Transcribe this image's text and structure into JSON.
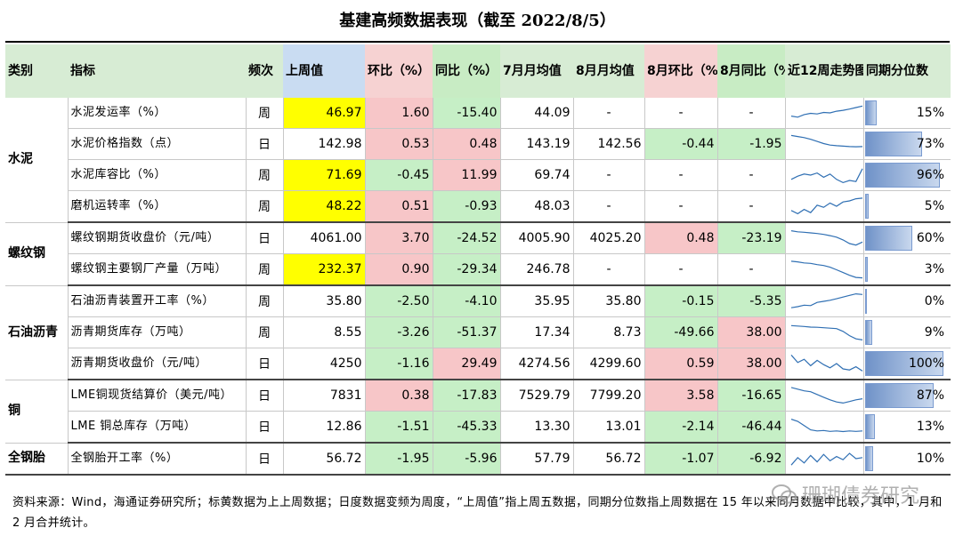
{
  "title": "基建高频数据表现（截至 2022/8/5）",
  "headers": {
    "category": "类别",
    "indicator": "指标",
    "freq": "频次",
    "last_week": "上周值",
    "wow": "环比（%）",
    "yoy": "同比（%）",
    "jul_avg": "7月月均值",
    "aug_avg": "8月月均值",
    "aug_mom": "8月环比（%）",
    "aug_yoy": "8月同比（%）",
    "trend": "近12周走势图",
    "percentile": "同期分位数"
  },
  "groups": [
    {
      "category": "水泥",
      "rows": [
        {
          "indicator": "水泥发运率（%）",
          "freq": "周",
          "last_week": "46.97",
          "lw_hl": true,
          "wow": "1.60",
          "yoy": "-15.40",
          "jul": "44.09",
          "aug": "-",
          "mom": "-",
          "ayoy": "-",
          "pct": "15%",
          "pct_value": 15,
          "spark": [
            0.35,
            0.3,
            0.42,
            0.48,
            0.45,
            0.52,
            0.5,
            0.58,
            0.62,
            0.68,
            0.75,
            0.82
          ]
        },
        {
          "indicator": "水泥价格指数（点）",
          "freq": "日",
          "last_week": "142.98",
          "lw_hl": false,
          "wow": "0.53",
          "yoy": "0.48",
          "jul": "143.19",
          "aug": "142.56",
          "mom": "-0.44",
          "ayoy": "-1.95",
          "pct": "73%",
          "pct_value": 73,
          "spark": [
            0.9,
            0.85,
            0.8,
            0.72,
            0.62,
            0.52,
            0.45,
            0.42,
            0.4,
            0.38,
            0.37,
            0.38
          ]
        },
        {
          "indicator": "水泥库容比（%）",
          "freq": "周",
          "last_week": "71.69",
          "lw_hl": true,
          "wow": "-0.45",
          "yoy": "11.99",
          "jul": "69.74",
          "aug": "-",
          "mom": "-",
          "ayoy": "-",
          "pct": "96%",
          "pct_value": 96,
          "spark": [
            0.3,
            0.45,
            0.55,
            0.5,
            0.6,
            0.4,
            0.55,
            0.3,
            0.15,
            0.25,
            0.2,
            0.8
          ]
        },
        {
          "indicator": "磨机运转率（%）",
          "freq": "周",
          "last_week": "48.22",
          "lw_hl": true,
          "wow": "0.51",
          "yoy": "-0.93",
          "jul": "48.03",
          "aug": "-",
          "mom": "-",
          "ayoy": "-",
          "pct": "5%",
          "pct_value": 5,
          "spark": [
            0.3,
            0.15,
            0.35,
            0.2,
            0.55,
            0.45,
            0.65,
            0.5,
            0.7,
            0.75,
            0.85,
            0.88
          ]
        }
      ]
    },
    {
      "category": "螺纹钢",
      "rows": [
        {
          "indicator": "螺纹钢期货收盘价（元/吨）",
          "freq": "日",
          "last_week": "4061.00",
          "lw_hl": false,
          "wow": "3.70",
          "yoy": "-24.52",
          "jul": "4005.90",
          "aug": "4025.20",
          "mom": "0.48",
          "ayoy": "-23.19",
          "pct": "60%",
          "pct_value": 60,
          "spark": [
            0.85,
            0.8,
            0.78,
            0.75,
            0.72,
            0.68,
            0.62,
            0.55,
            0.42,
            0.25,
            0.18,
            0.32
          ]
        },
        {
          "indicator": "螺纹钢主要钢厂产量（万吨）",
          "freq": "周",
          "last_week": "232.37",
          "lw_hl": true,
          "wow": "0.90",
          "yoy": "-29.34",
          "jul": "246.78",
          "aug": "-",
          "mom": "-",
          "ayoy": "-",
          "pct": "3%",
          "pct_value": 3,
          "spark": [
            0.88,
            0.85,
            0.8,
            0.78,
            0.72,
            0.68,
            0.6,
            0.48,
            0.35,
            0.22,
            0.12,
            0.1
          ]
        }
      ]
    },
    {
      "category": "石油沥青",
      "rows": [
        {
          "indicator": "石油沥青装置开工率（%）",
          "freq": "周",
          "last_week": "35.80",
          "lw_hl": false,
          "wow": "-2.50",
          "yoy": "-4.10",
          "jul": "35.95",
          "aug": "35.80",
          "mom": "-0.15",
          "ayoy": "-5.35",
          "pct": "0%",
          "pct_value": 0,
          "spark": [
            0.2,
            0.25,
            0.32,
            0.3,
            0.45,
            0.5,
            0.55,
            0.62,
            0.7,
            0.78,
            0.85,
            0.82
          ]
        },
        {
          "indicator": "沥青期货库存（万吨）",
          "freq": "周",
          "last_week": "8.55",
          "lw_hl": false,
          "wow": "-3.26",
          "yoy": "-51.37",
          "jul": "17.34",
          "aug": "8.73",
          "mom": "-49.66",
          "ayoy": "38.00",
          "pct": "9%",
          "pct_value": 9,
          "spark": [
            0.82,
            0.8,
            0.78,
            0.75,
            0.74,
            0.72,
            0.7,
            0.68,
            0.55,
            0.35,
            0.2,
            0.15
          ]
        },
        {
          "indicator": "沥青期货收盘价（元/吨）",
          "freq": "日",
          "last_week": "4250",
          "lw_hl": false,
          "wow": "-1.16",
          "yoy": "29.49",
          "jul": "4274.56",
          "aug": "4299.60",
          "mom": "0.59",
          "ayoy": "38.00",
          "pct": "100%",
          "pct_value": 100,
          "spark": [
            0.9,
            0.55,
            0.7,
            0.4,
            0.65,
            0.45,
            0.3,
            0.5,
            0.25,
            0.2,
            0.35,
            0.15
          ]
        }
      ]
    },
    {
      "category": "铜",
      "rows": [
        {
          "indicator": "LME铜现货结算价（美元/吨）",
          "freq": "日",
          "last_week": "7831",
          "lw_hl": false,
          "wow": "0.38",
          "yoy": "-17.83",
          "jul": "7529.79",
          "aug": "7799.20",
          "mom": "3.58",
          "ayoy": "-16.65",
          "pct": "87%",
          "pct_value": 87,
          "spark": [
            0.88,
            0.8,
            0.72,
            0.68,
            0.55,
            0.42,
            0.3,
            0.2,
            0.15,
            0.22,
            0.3,
            0.35
          ]
        },
        {
          "indicator": "LME 铜总库存（万吨）",
          "freq": "日",
          "last_week": "12.86",
          "lw_hl": false,
          "wow": "-1.51",
          "yoy": "-45.33",
          "jul": "13.30",
          "aug": "13.01",
          "mom": "-2.14",
          "ayoy": "-46.44",
          "pct": "13%",
          "pct_value": 13,
          "spark": [
            0.85,
            0.75,
            0.55,
            0.35,
            0.3,
            0.32,
            0.28,
            0.3,
            0.27,
            0.3,
            0.28,
            0.3
          ]
        }
      ]
    },
    {
      "category": "全钢胎",
      "rows": [
        {
          "indicator": "全钢胎开工率（%）",
          "freq": "日",
          "last_week": "56.72",
          "lw_hl": false,
          "wow": "-1.95",
          "yoy": "-5.96",
          "jul": "57.79",
          "aug": "56.72",
          "mom": "-1.07",
          "ayoy": "-6.92",
          "pct": "10%",
          "pct_value": 10,
          "spark": [
            0.2,
            0.55,
            0.3,
            0.65,
            0.35,
            0.7,
            0.4,
            0.6,
            0.45,
            0.75,
            0.5,
            0.55
          ]
        }
      ]
    }
  ],
  "footnote": "资料来源：Wind，海通证券研究所；标黄数据为上上周数据；日度数据变频为周度，“上周值”指上周五数据，同期分位数指上周数据在 15 年以来同月数据中比较，其中，1 月和 2 月合并统计。",
  "watermark": "珊瑚债券研究",
  "colors": {
    "highlight": "#ffff00",
    "positive": "#f7c6c8",
    "negative": "#c6efc6",
    "spark_line": "#2f6fb3"
  }
}
